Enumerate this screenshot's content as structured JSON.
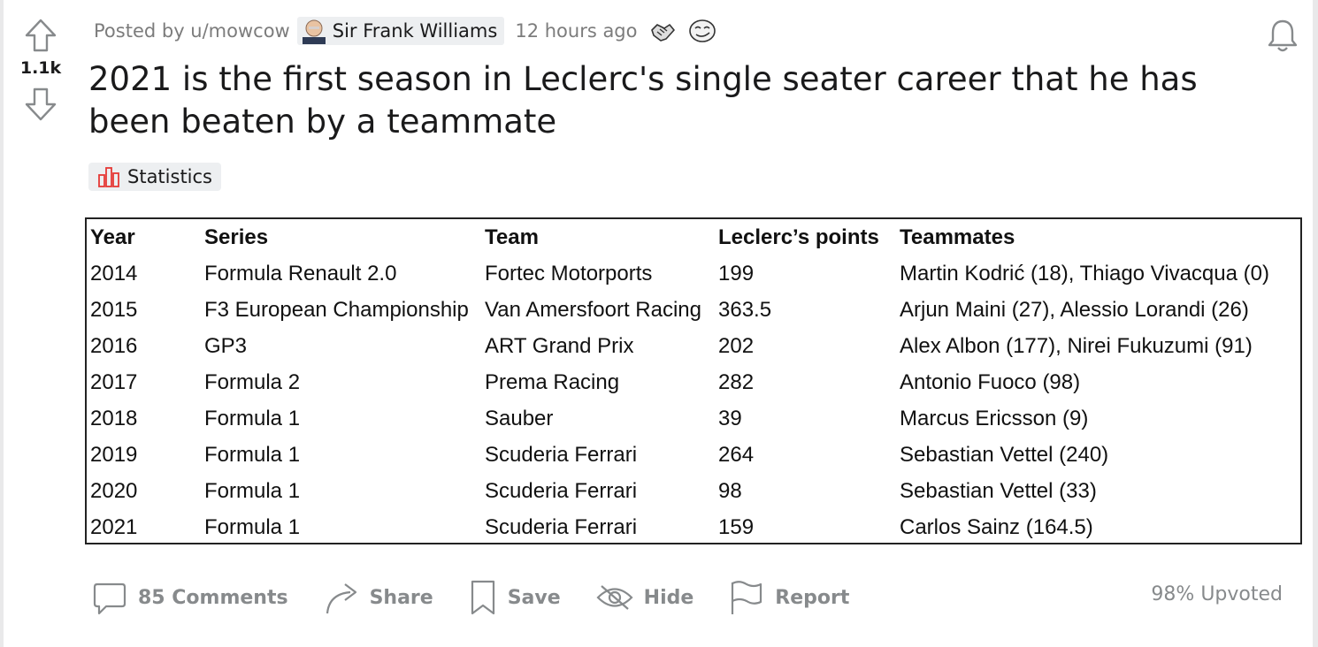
{
  "post": {
    "score": "1.1k",
    "posted_by": "Posted by u/mowcow",
    "flair_name": "Sir Frank Williams",
    "time": "12 hours ago",
    "title": "2021 is the first season in Leclerc's single seater career that he has been beaten by a teammate",
    "tag": "Statistics",
    "upvoted": "98% Upvoted"
  },
  "table": {
    "headers": [
      "Year",
      "Series",
      "Team",
      "Leclerc’s points",
      "Teammates"
    ],
    "rows": [
      [
        "2014",
        "Formula Renault 2.0",
        "Fortec Motorports",
        "199",
        "Martin Kodrić (18), Thiago Vivacqua (0)"
      ],
      [
        "2015",
        "F3 European Championship",
        "Van Amersfoort Racing",
        "363.5",
        "Arjun Maini (27), Alessio Lorandi (26)"
      ],
      [
        "2016",
        "GP3",
        "ART Grand Prix",
        "202",
        "Alex Albon (177), Nirei Fukuzumi (91)"
      ],
      [
        "2017",
        "Formula 2",
        "Prema Racing",
        "282",
        "Antonio Fuoco (98)"
      ],
      [
        "2018",
        "Formula 1",
        "Sauber",
        "39",
        "Marcus Ericsson (9)"
      ],
      [
        "2019",
        "Formula 1",
        "Scuderia Ferrari",
        "264",
        "Sebastian Vettel (240)"
      ],
      [
        "2020",
        "Formula 1",
        "Scuderia Ferrari",
        "98",
        "Sebastian Vettel (33)"
      ],
      [
        "2021",
        "Formula 1",
        "Scuderia Ferrari",
        "159",
        "Carlos Sainz (164.5)"
      ]
    ]
  },
  "actions": {
    "comments": "85 Comments",
    "share": "Share",
    "save": "Save",
    "hide": "Hide",
    "report": "Report"
  },
  "icons": {
    "upvote": "upvote-arrow-icon",
    "downvote": "downvote-arrow-icon",
    "bell": "bell-icon",
    "flair": "avatar-face-icon",
    "tag": "bar-chart-icon",
    "comment": "comment-bubble-icon",
    "share": "share-arrow-icon",
    "save": "bookmark-icon",
    "hide": "eye-slash-icon",
    "report": "flag-icon"
  },
  "colors": {
    "tag_icon": "#e53935",
    "muted": "#878a8c"
  }
}
